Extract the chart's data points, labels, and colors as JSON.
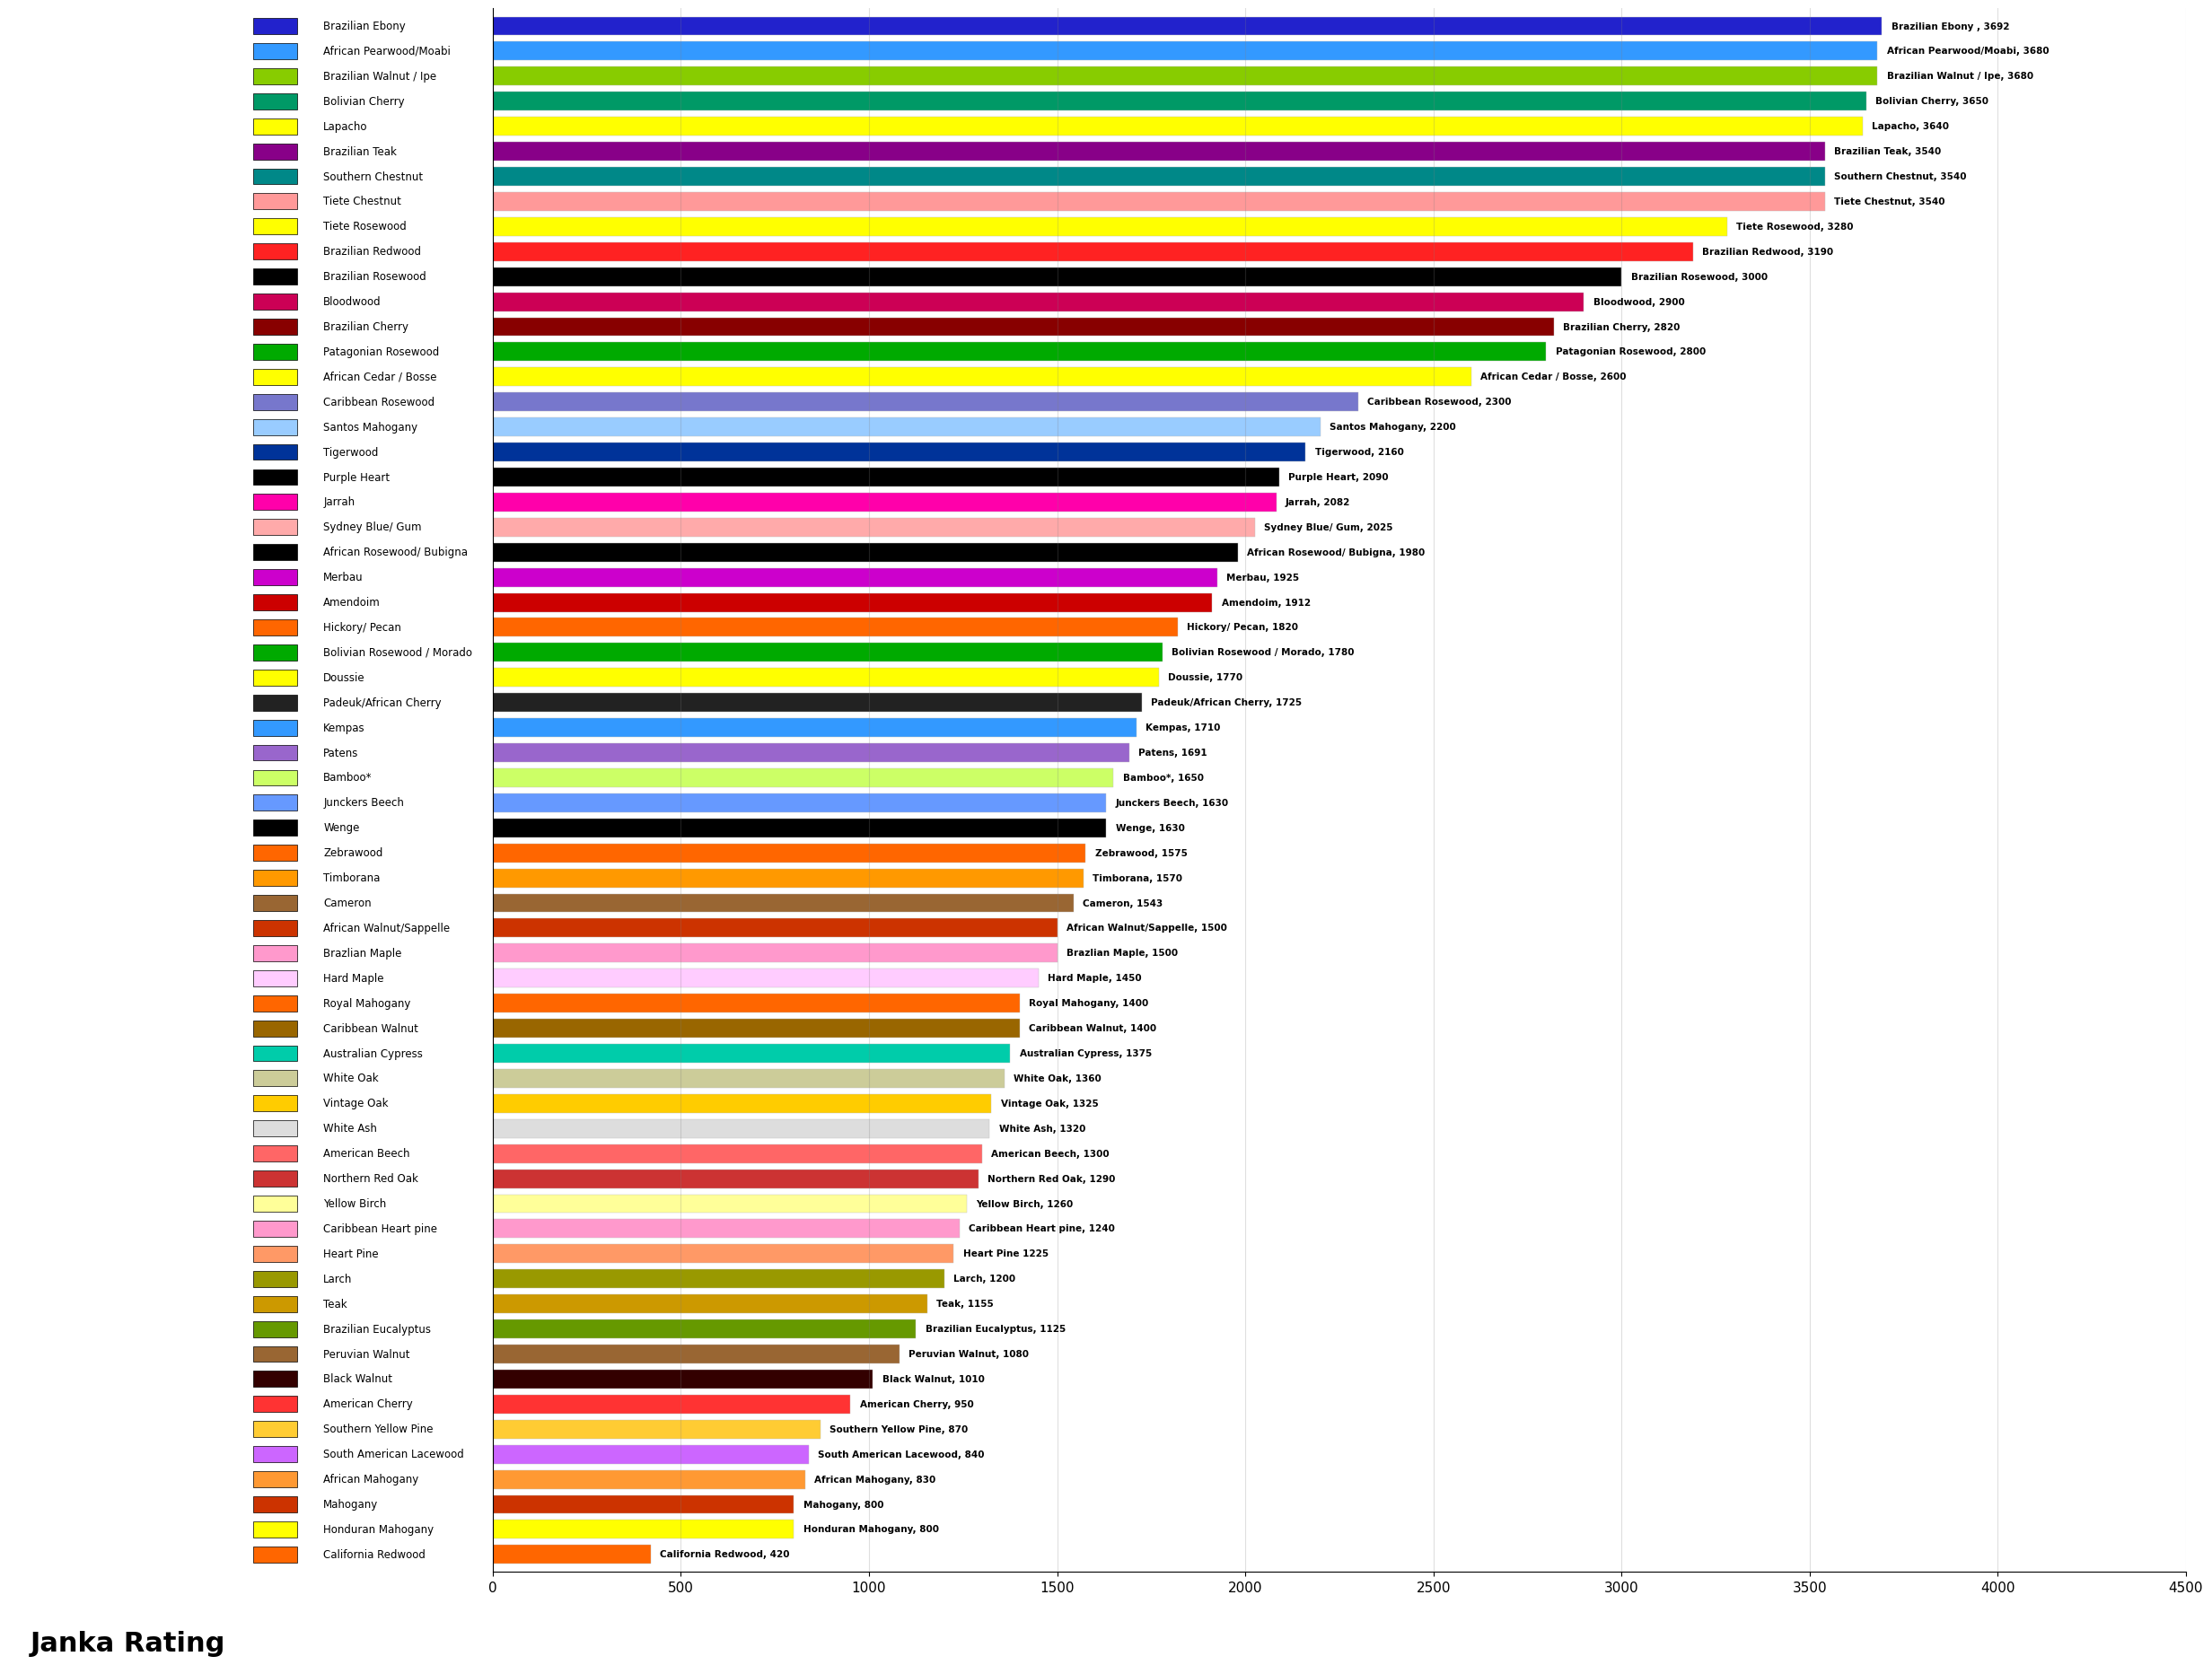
{
  "title": "",
  "xlim": [
    0,
    4500
  ],
  "xticks": [
    0,
    500,
    1000,
    1500,
    2000,
    2500,
    3000,
    3500,
    4000,
    4500
  ],
  "bars": [
    {
      "label": "Brazilian Ebony",
      "value": 3692,
      "color": "#2222cc",
      "bar_label": "Brazilian Ebony , 3692"
    },
    {
      "label": "African Pearwood/Moabi",
      "value": 3680,
      "color": "#3399ff",
      "bar_label": "African Pearwood/Moabi, 3680"
    },
    {
      "label": "Brazilian Walnut / Ipe",
      "value": 3680,
      "color": "#88cc00",
      "bar_label": "Brazilian Walnut / Ipe, 3680"
    },
    {
      "label": "Bolivian Cherry",
      "value": 3650,
      "color": "#009966",
      "bar_label": "Bolivian Cherry, 3650"
    },
    {
      "label": "Lapacho",
      "value": 3640,
      "color": "#ffff00",
      "bar_label": "Lapacho, 3640"
    },
    {
      "label": "Brazilian Teak",
      "value": 3540,
      "color": "#880088",
      "bar_label": "Brazilian Teak, 3540"
    },
    {
      "label": "Southern Chestnut",
      "value": 3540,
      "color": "#008888",
      "bar_label": "Southern Chestnut, 3540"
    },
    {
      "label": "Tiete Chestnut",
      "value": 3540,
      "color": "#ff9999",
      "bar_label": "Tiete Chestnut, 3540"
    },
    {
      "label": "Tiete Rosewood",
      "value": 3280,
      "color": "#ffff00",
      "bar_label": "Tiete Rosewood, 3280"
    },
    {
      "label": "Brazilian Redwood",
      "value": 3190,
      "color": "#ff2222",
      "bar_label": "Brazilian Redwood, 3190"
    },
    {
      "label": "Brazilian Rosewood",
      "value": 3000,
      "color": "#000000",
      "bar_label": "Brazilian Rosewood, 3000"
    },
    {
      "label": "Bloodwood",
      "value": 2900,
      "color": "#cc0055",
      "bar_label": "Bloodwood, 2900"
    },
    {
      "label": "Brazilian Cherry",
      "value": 2820,
      "color": "#880000",
      "bar_label": "Brazilian Cherry, 2820"
    },
    {
      "label": "Patagonian Rosewood",
      "value": 2800,
      "color": "#00aa00",
      "bar_label": "Patagonian Rosewood, 2800"
    },
    {
      "label": "African Cedar / Bosse",
      "value": 2600,
      "color": "#ffff00",
      "bar_label": "African Cedar / Bosse, 2600"
    },
    {
      "label": "Caribbean Rosewood",
      "value": 2300,
      "color": "#7777cc",
      "bar_label": "Caribbean Rosewood, 2300"
    },
    {
      "label": "Santos Mahogany",
      "value": 2200,
      "color": "#99ccff",
      "bar_label": "Santos Mahogany, 2200"
    },
    {
      "label": "Tigerwood",
      "value": 2160,
      "color": "#003399",
      "bar_label": "Tigerwood, 2160"
    },
    {
      "label": "Purple Heart",
      "value": 2090,
      "color": "#000000",
      "bar_label": "Purple Heart, 2090"
    },
    {
      "label": "Jarrah",
      "value": 2082,
      "color": "#ff00aa",
      "bar_label": "Jarrah, 2082"
    },
    {
      "label": "Sydney Blue/ Gum",
      "value": 2025,
      "color": "#ffaaaa",
      "bar_label": "Sydney Blue/ Gum, 2025"
    },
    {
      "label": "African Rosewood/ Bubigna",
      "value": 1980,
      "color": "#000000",
      "bar_label": "African Rosewood/ Bubigna, 1980"
    },
    {
      "label": "Merbau",
      "value": 1925,
      "color": "#cc00cc",
      "bar_label": "Merbau, 1925"
    },
    {
      "label": "Amendoim",
      "value": 1912,
      "color": "#cc0000",
      "bar_label": "Amendoim, 1912"
    },
    {
      "label": "Hickory/ Pecan",
      "value": 1820,
      "color": "#ff6600",
      "bar_label": "Hickory/ Pecan, 1820"
    },
    {
      "label": "Bolivian Rosewood / Morado",
      "value": 1780,
      "color": "#00aa00",
      "bar_label": "Bolivian Rosewood / Morado, 1780"
    },
    {
      "label": "Doussie",
      "value": 1770,
      "color": "#ffff00",
      "bar_label": "Doussie, 1770"
    },
    {
      "label": "Padeuk/African Cherry",
      "value": 1725,
      "color": "#222222",
      "bar_label": "Padeuk/African Cherry, 1725"
    },
    {
      "label": "Kempas",
      "value": 1710,
      "color": "#3399ff",
      "bar_label": "Kempas, 1710"
    },
    {
      "label": "Patens",
      "value": 1691,
      "color": "#9966cc",
      "bar_label": "Patens, 1691"
    },
    {
      "label": "Bamboo*",
      "value": 1650,
      "color": "#ccff66",
      "bar_label": "Bamboo*, 1650"
    },
    {
      "label": "Junckers Beech",
      "value": 1630,
      "color": "#6699ff",
      "bar_label": "Junckers Beech, 1630"
    },
    {
      "label": "Wenge",
      "value": 1630,
      "color": "#000000",
      "bar_label": "Wenge, 1630"
    },
    {
      "label": "Zebrawood",
      "value": 1575,
      "color": "#ff6600",
      "bar_label": "Zebrawood, 1575"
    },
    {
      "label": "Timborana",
      "value": 1570,
      "color": "#ff9900",
      "bar_label": "Timborana, 1570"
    },
    {
      "label": "Cameron",
      "value": 1543,
      "color": "#996633",
      "bar_label": "Cameron, 1543"
    },
    {
      "label": "African Walnut/Sappelle",
      "value": 1500,
      "color": "#cc3300",
      "bar_label": "African Walnut/Sappelle, 1500"
    },
    {
      "label": "Brazlian Maple",
      "value": 1500,
      "color": "#ff99cc",
      "bar_label": "Brazlian Maple, 1500"
    },
    {
      "label": "Hard Maple",
      "value": 1450,
      "color": "#ffccff",
      "bar_label": "Hard Maple, 1450"
    },
    {
      "label": "Royal Mahogany",
      "value": 1400,
      "color": "#ff6600",
      "bar_label": "Royal Mahogany, 1400"
    },
    {
      "label": "Caribbean Walnut",
      "value": 1400,
      "color": "#996600",
      "bar_label": "Caribbean Walnut, 1400"
    },
    {
      "label": "Australian Cypress",
      "value": 1375,
      "color": "#00ccaa",
      "bar_label": "Australian Cypress, 1375"
    },
    {
      "label": "White Oak",
      "value": 1360,
      "color": "#cccc99",
      "bar_label": "White Oak, 1360"
    },
    {
      "label": "Vintage Oak",
      "value": 1325,
      "color": "#ffcc00",
      "bar_label": "Vintage Oak, 1325"
    },
    {
      "label": "White Ash",
      "value": 1320,
      "color": "#dddddd",
      "bar_label": "White Ash, 1320"
    },
    {
      "label": "American Beech",
      "value": 1300,
      "color": "#ff6666",
      "bar_label": "American Beech, 1300"
    },
    {
      "label": "Northern Red Oak",
      "value": 1290,
      "color": "#cc3333",
      "bar_label": "Northern Red Oak, 1290"
    },
    {
      "label": "Yellow Birch",
      "value": 1260,
      "color": "#ffff99",
      "bar_label": "Yellow Birch, 1260"
    },
    {
      "label": "Caribbean Heart pine",
      "value": 1240,
      "color": "#ff99cc",
      "bar_label": "Caribbean Heart pine, 1240"
    },
    {
      "label": "Heart Pine",
      "value": 1225,
      "color": "#ff9966",
      "bar_label": "Heart Pine 1225"
    },
    {
      "label": "Larch",
      "value": 1200,
      "color": "#999900",
      "bar_label": "Larch, 1200"
    },
    {
      "label": "Teak",
      "value": 1155,
      "color": "#cc9900",
      "bar_label": "Teak, 1155"
    },
    {
      "label": "Brazilian Eucalyptus",
      "value": 1125,
      "color": "#669900",
      "bar_label": "Brazilian Eucalyptus, 1125"
    },
    {
      "label": "Peruvian Walnut",
      "value": 1080,
      "color": "#996633",
      "bar_label": "Peruvian Walnut, 1080"
    },
    {
      "label": "Black Walnut",
      "value": 1010,
      "color": "#330000",
      "bar_label": "Black Walnut, 1010"
    },
    {
      "label": "American Cherry",
      "value": 950,
      "color": "#ff3333",
      "bar_label": "American Cherry, 950"
    },
    {
      "label": "Southern Yellow Pine",
      "value": 870,
      "color": "#ffcc33",
      "bar_label": "Southern Yellow Pine, 870"
    },
    {
      "label": "South American Lacewood",
      "value": 840,
      "color": "#cc66ff",
      "bar_label": "South American Lacewood, 840"
    },
    {
      "label": "African Mahogany",
      "value": 830,
      "color": "#ff9933",
      "bar_label": "African Mahogany, 830"
    },
    {
      "label": "Mahogany",
      "value": 800,
      "color": "#cc3300",
      "bar_label": "Mahogany, 800"
    },
    {
      "label": "Honduran Mahogany",
      "value": 800,
      "color": "#ffff00",
      "bar_label": "Honduran Mahogany, 800"
    },
    {
      "label": "California Redwood",
      "value": 420,
      "color": "#ff6600",
      "bar_label": "California Redwood, 420"
    }
  ],
  "background_color": "#ffffff",
  "bar_height": 0.75,
  "label_fontsize": 7.5,
  "legend_fontsize": 8.5,
  "axis_fontsize": 11,
  "janka_fontsize": 22,
  "legend_square_size": 10,
  "legend_labels": [
    "Brazilian Ebony",
    "African Pearwood/Moabi",
    "Brazilian Walnut / Ipe",
    "Bolivian Cherry",
    "Lapacho",
    "Brazilian Teak",
    "Southern Chestnut",
    "Tiete Chestnut",
    "Tiete Rosewood",
    "Brazilian Redwood",
    "Brazilian Rosewood",
    "Bloodwood",
    "Brazilian Cherry",
    "Patagonian Rosewood",
    "African Cedar / Bosse",
    "Caribbean Rosewood",
    "Santos Mahogany",
    "Tigerwood",
    "Purple Heart",
    "Jarrah",
    "Sydney Blue/ Gum",
    "African Rosewood/\nBubigna",
    "Merbau",
    "Amendoim",
    "Hickory/ Pecan",
    "Bolivian Rosewood /\nMorado",
    "Doussie",
    "Padeuk/African Cherry",
    "Kempas",
    "Patens",
    "Bamboo*",
    "Junckers Beech"
  ]
}
